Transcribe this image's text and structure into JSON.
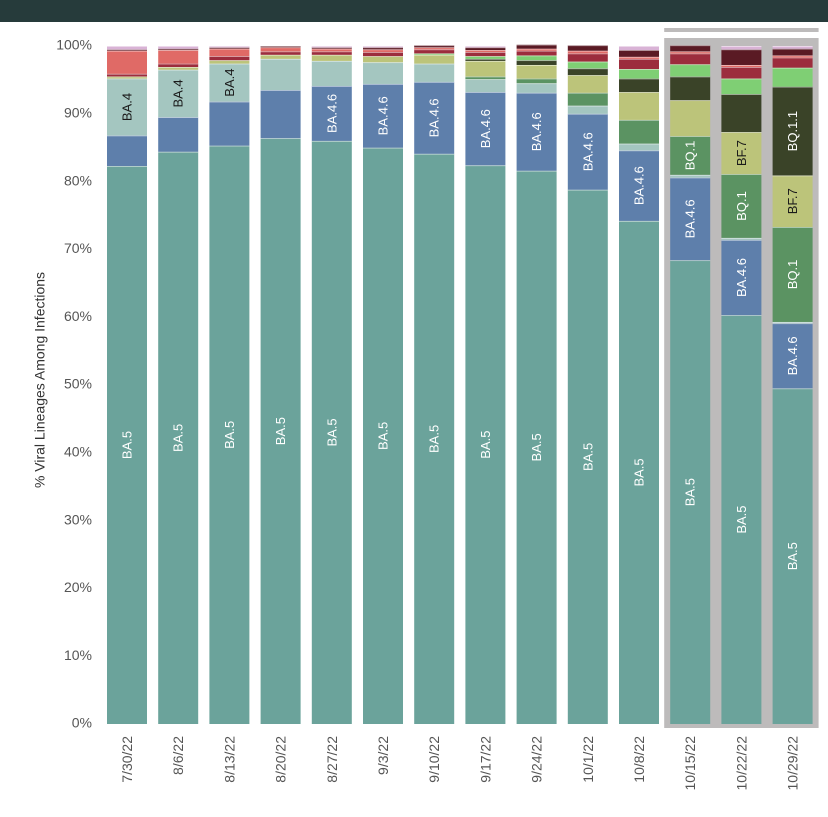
{
  "chart_data": {
    "type": "bar",
    "stacked": true,
    "ylabel": "% Viral Lineages Among Infections",
    "ylim": [
      0,
      100
    ],
    "y_ticks": [
      "0%",
      "10%",
      "20%",
      "30%",
      "40%",
      "50%",
      "60%",
      "70%",
      "80%",
      "90%",
      "100%"
    ],
    "categories": [
      "7/30/22",
      "8/6/22",
      "8/13/22",
      "8/20/22",
      "8/27/22",
      "9/3/22",
      "9/10/22",
      "9/17/22",
      "9/24/22",
      "10/1/22",
      "10/8/22",
      "10/15/22",
      "10/22/22",
      "10/29/22"
    ],
    "highlighted_categories": [
      "10/15/22",
      "10/22/22",
      "10/29/22"
    ],
    "highlight_color": "#bdbbbb",
    "series": [
      {
        "name": "BA.5",
        "color": "#6ba39b",
        "values": [
          82.3,
          84.4,
          85.3,
          86.4,
          86.0,
          85.0,
          84.1,
          82.4,
          81.6,
          78.8,
          74.2,
          68.4,
          60.3,
          49.5
        ],
        "labels": [
          "BA.5",
          "BA.5",
          "BA.5",
          "BA.5",
          "BA.5",
          "BA.5",
          "BA.5",
          "BA.5",
          "BA.5",
          "BA.5",
          "BA.5",
          "BA.5",
          "BA.5",
          "BA.5"
        ]
      },
      {
        "name": "BA.4.6",
        "color": "#5e7fab",
        "values": [
          4.5,
          5.1,
          6.5,
          7.1,
          8.1,
          9.4,
          10.6,
          10.8,
          11.5,
          11.2,
          10.4,
          12.2,
          11.1,
          9.6
        ],
        "labels": [
          "",
          "",
          "",
          "",
          "BA.4.6",
          "BA.4.6",
          "BA.4.6",
          "BA.4.6",
          "BA.4.6",
          "BA.4.6",
          "BA.4.6",
          "BA.4.6",
          "BA.4.6",
          "BA.4.6"
        ]
      },
      {
        "name": "BA.4",
        "color": "#a4c6c0",
        "values": [
          8.4,
          7.0,
          5.6,
          4.6,
          3.7,
          3.2,
          2.7,
          1.9,
          1.4,
          1.2,
          1.0,
          0.4,
          0.3,
          0.2
        ],
        "labels": [
          "BA.4",
          "BA.4",
          "BA.4",
          "",
          "",
          "",
          "",
          "",
          "",
          "",
          "",
          "",
          "",
          ""
        ]
      },
      {
        "name": "BQ.1",
        "color": "#5b9362",
        "values": [
          0,
          0,
          0,
          0,
          0,
          0,
          0,
          0.4,
          0.7,
          1.9,
          3.5,
          5.7,
          9.4,
          14.0
        ],
        "labels": [
          "",
          "",
          "",
          "",
          "",
          "",
          "",
          "",
          "",
          "",
          "",
          "BQ.1",
          "BQ.1",
          "BQ.1"
        ]
      },
      {
        "name": "BF.7",
        "color": "#bcc47a",
        "values": [
          0.3,
          0.4,
          0.5,
          0.6,
          0.9,
          0.9,
          1.3,
          2.3,
          2.0,
          2.6,
          4.1,
          5.3,
          6.2,
          7.6
        ],
        "labels": [
          "",
          "",
          "",
          "",
          "",
          "",
          "",
          "",
          "",
          "",
          "",
          "",
          "BF.7",
          "BF.7"
        ]
      },
      {
        "name": "BQ.1.1",
        "color": "#3a4328",
        "values": [
          0,
          0,
          0,
          0,
          0,
          0,
          0,
          0.3,
          0.7,
          1.0,
          2.0,
          3.5,
          5.6,
          13.1
        ],
        "labels": [
          "",
          "",
          "",
          "",
          "",
          "",
          "",
          "",
          "",
          "",
          "",
          "",
          "",
          "BQ.1.1"
        ]
      },
      {
        "name": "",
        "color": "#7fcf74",
        "values": [
          0,
          0,
          0,
          0,
          0,
          0,
          0.2,
          0.4,
          0.7,
          1.0,
          1.4,
          1.8,
          2.3,
          2.8
        ],
        "labels": [
          "",
          "",
          "",
          "",
          "",
          "",
          "",
          "",
          "",
          "",
          "",
          "",
          "",
          ""
        ]
      },
      {
        "name": "",
        "color": "#9c2d3d",
        "values": [
          0.4,
          0.5,
          0.6,
          0.5,
          0.5,
          0.6,
          0.6,
          0.6,
          0.7,
          1.2,
          1.5,
          1.6,
          1.7,
          1.5
        ],
        "labels": [
          "",
          "",
          "",
          "",
          "",
          "",
          "",
          "",
          "",
          "",
          "",
          "",
          "",
          ""
        ]
      },
      {
        "name": "",
        "color": "#e06a66",
        "values": [
          3.4,
          2.0,
          1.1,
          0.6,
          0.4,
          0.4,
          0.3,
          0.3,
          0.3,
          0.4,
          0.3,
          0.3,
          0.3,
          0.3
        ],
        "labels": [
          "",
          "",
          "",
          "",
          "",
          "",
          "",
          "",
          "",
          "",
          "",
          "",
          "",
          ""
        ]
      },
      {
        "name": "",
        "color": "#5a1a24",
        "values": [
          0.2,
          0.2,
          0.2,
          0.2,
          0.2,
          0.3,
          0.3,
          0.4,
          0.6,
          0.8,
          1.0,
          0.9,
          2.3,
          1.0
        ],
        "labels": [
          "",
          "",
          "",
          "",
          "",
          "",
          "",
          "",
          "",
          "",
          "",
          "",
          "",
          ""
        ]
      },
      {
        "name": "",
        "color": "#d9b3d6",
        "values": [
          0.5,
          0.4,
          0.2,
          0.0,
          0.2,
          0.2,
          0.0,
          0.2,
          0.0,
          0.0,
          0.6,
          0.0,
          0.5,
          0.4
        ],
        "labels": [
          "",
          "",
          "",
          "",
          "",
          "",
          "",
          "",
          "",
          "",
          "",
          "",
          "",
          ""
        ]
      }
    ]
  }
}
